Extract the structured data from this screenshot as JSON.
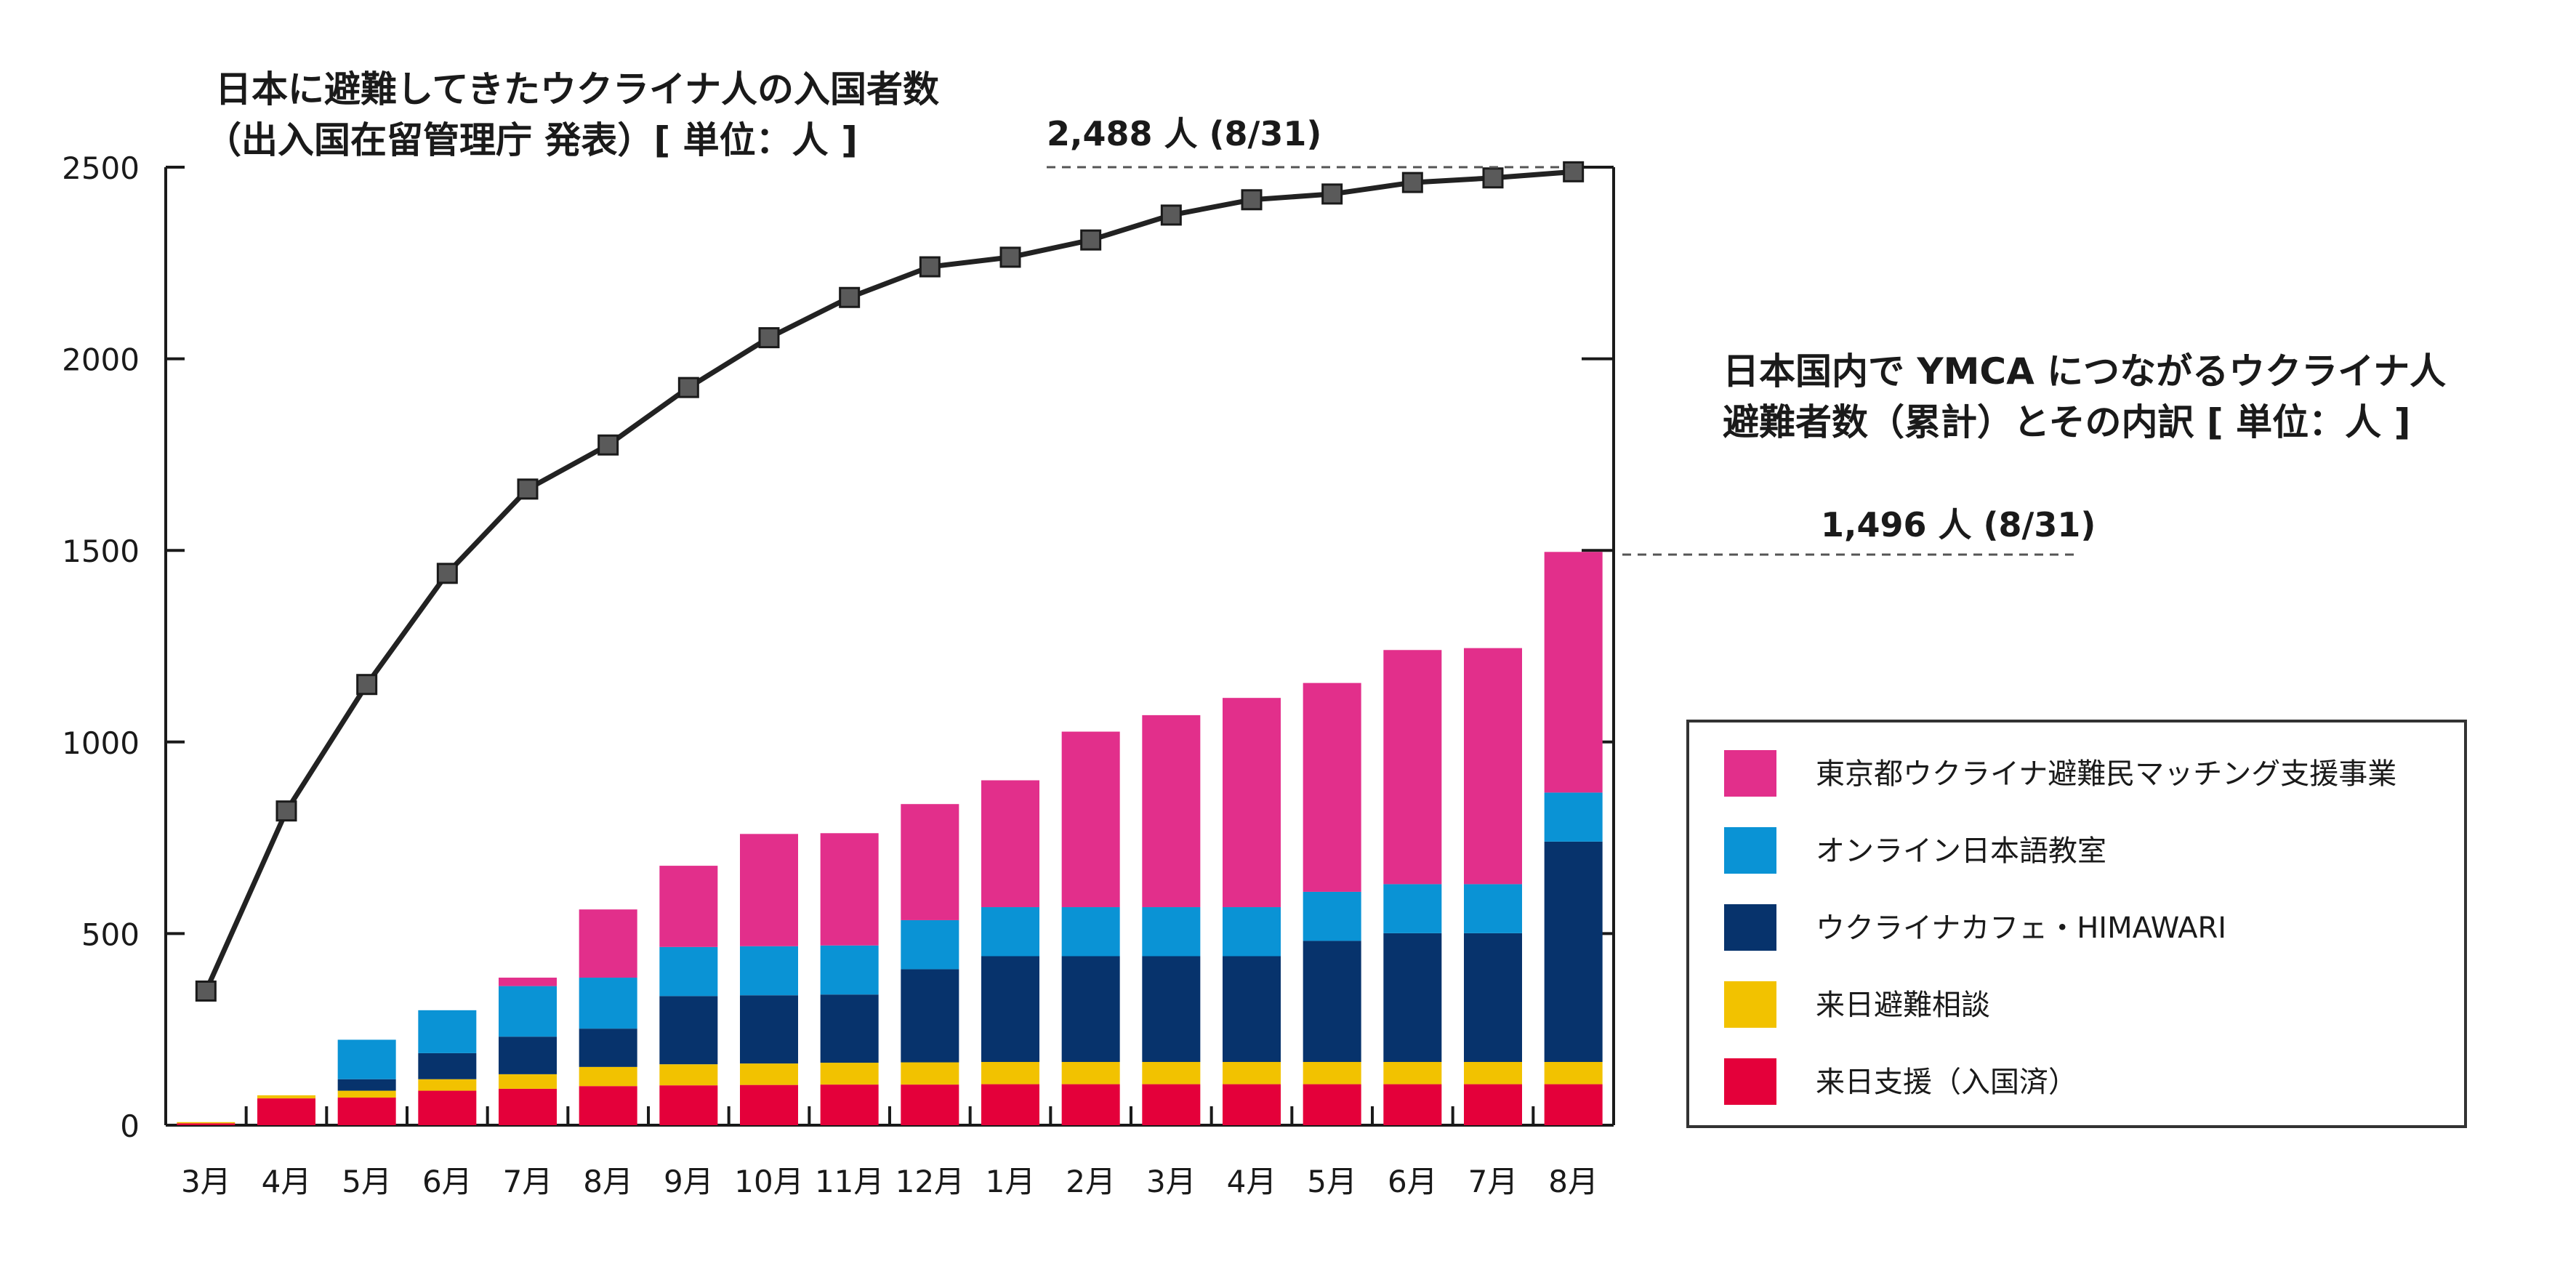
{
  "chart_data": {
    "type": "bar",
    "stacked": true,
    "categories": [
      "3月",
      "4月",
      "5月",
      "6月",
      "7月",
      "8月",
      "9月",
      "10月",
      "11月",
      "12月",
      "1月",
      "2月",
      "3月",
      "4月",
      "5月",
      "6月",
      "7月",
      "8月"
    ],
    "ylim": [
      0,
      2500
    ],
    "yticks": [
      0,
      500,
      1000,
      1500,
      2000,
      2500
    ],
    "grid": false,
    "legend_position": "right",
    "line_title_lines": [
      "日本に避難してきたウクライナ人の入国者数",
      "（出入国在留管理庁 発表）[ 単位：人 ]"
    ],
    "bar_title_lines": [
      "日本国内で YMCA につながるウクライナ人",
      "避難者数（累計）とその内訳 [ 単位：人 ]"
    ],
    "line_callout": "2,488 人 (8/31)",
    "bar_callout": "1,496 人 (8/31)",
    "line_series": {
      "name": "",
      "color": "#222222",
      "marker_color": "#5a5a5a",
      "values": [
        350,
        820,
        1150,
        1440,
        1660,
        1775,
        1925,
        2055,
        2160,
        2240,
        2265,
        2310,
        2375,
        2415,
        2430,
        2460,
        2472,
        2488
      ]
    },
    "series": [
      {
        "name": "来日支援（入国済）",
        "color": "#e4003a",
        "values": [
          5,
          70,
          72,
          90,
          95,
          102,
          104,
          105,
          106,
          106,
          107,
          107,
          107,
          107,
          107,
          107,
          107,
          107
        ]
      },
      {
        "name": "来日避難相談",
        "color": "#f2c200",
        "values": [
          3,
          8,
          18,
          30,
          38,
          50,
          55,
          56,
          57,
          58,
          58,
          58,
          58,
          58,
          58,
          58,
          58,
          58
        ]
      },
      {
        "name": "ウクライナカフェ・HIMAWARI",
        "color": "#07336c",
        "values": [
          0,
          0,
          30,
          68,
          98,
          100,
          178,
          178,
          178,
          243,
          276,
          276,
          276,
          276,
          316,
          336,
          336,
          575
        ]
      },
      {
        "name": "オンライン日本語教室",
        "color": "#0a93d5",
        "values": [
          0,
          0,
          103,
          112,
          132,
          133,
          128,
          128,
          128,
          128,
          128,
          128,
          128,
          128,
          128,
          128,
          128,
          128
        ]
      },
      {
        "name": "東京都ウクライナ避難民マッチング支援事業",
        "color": "#e22f8b",
        "values": [
          0,
          0,
          0,
          0,
          22,
          178,
          212,
          293,
          293,
          303,
          331,
          458,
          501,
          546,
          545,
          611,
          616,
          628
        ]
      }
    ]
  }
}
